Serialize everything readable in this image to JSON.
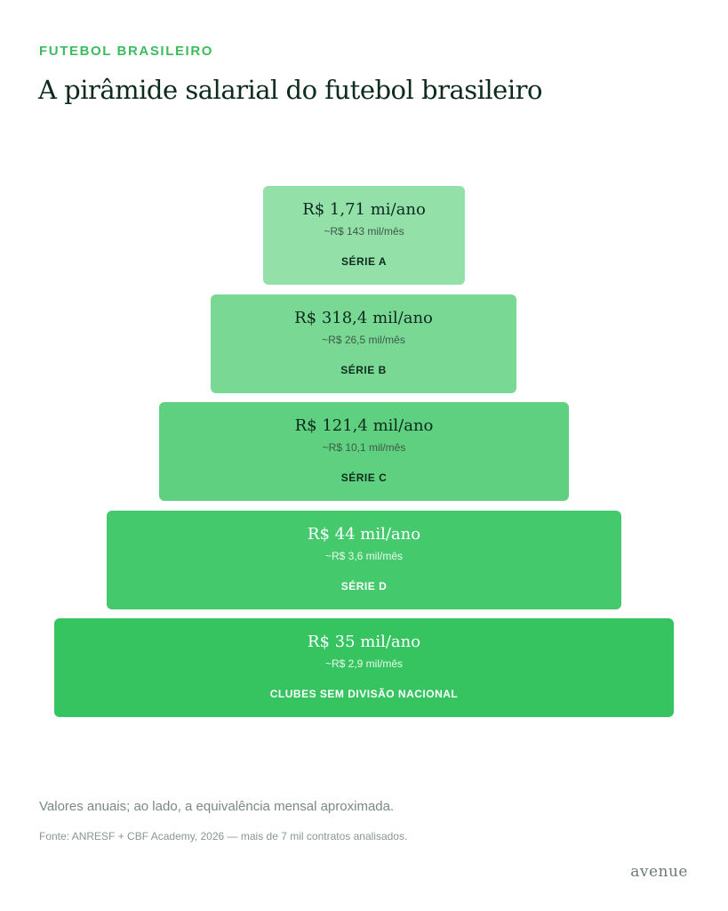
{
  "header": {
    "kicker": "FUTEBOL BRASILEIRO",
    "title": "A pirâmide salarial do futebol brasileiro"
  },
  "tiers": [
    {
      "annual": "R$ 1,71 mi/ano",
      "monthly": "~R$ 143 mil/mês",
      "label": "SÉRIE A"
    },
    {
      "annual": "R$ 318,4 mil/ano",
      "monthly": "~R$ 26,5 mil/mês",
      "label": "SÉRIE B"
    },
    {
      "annual": "R$ 121,4 mil/ano",
      "monthly": "~R$ 10,1 mil/mês",
      "label": "SÉRIE C"
    },
    {
      "annual": "R$ 44 mil/ano",
      "monthly": "~R$ 3,6 mil/mês",
      "label": "SÉRIE D"
    },
    {
      "annual": "R$ 35 mil/ano",
      "monthly": "~R$ 2,9 mil/mês",
      "label": "CLUBES SEM DIVISÃO NACIONAL"
    }
  ],
  "footer": {
    "note": "Valores anuais; ao lado, a equivalência mensal aproximada.",
    "source": "Fonte: ANRESF + CBF Academy, 2026 — mais de 7 mil contratos analisados.",
    "brand": "avenue"
  }
}
